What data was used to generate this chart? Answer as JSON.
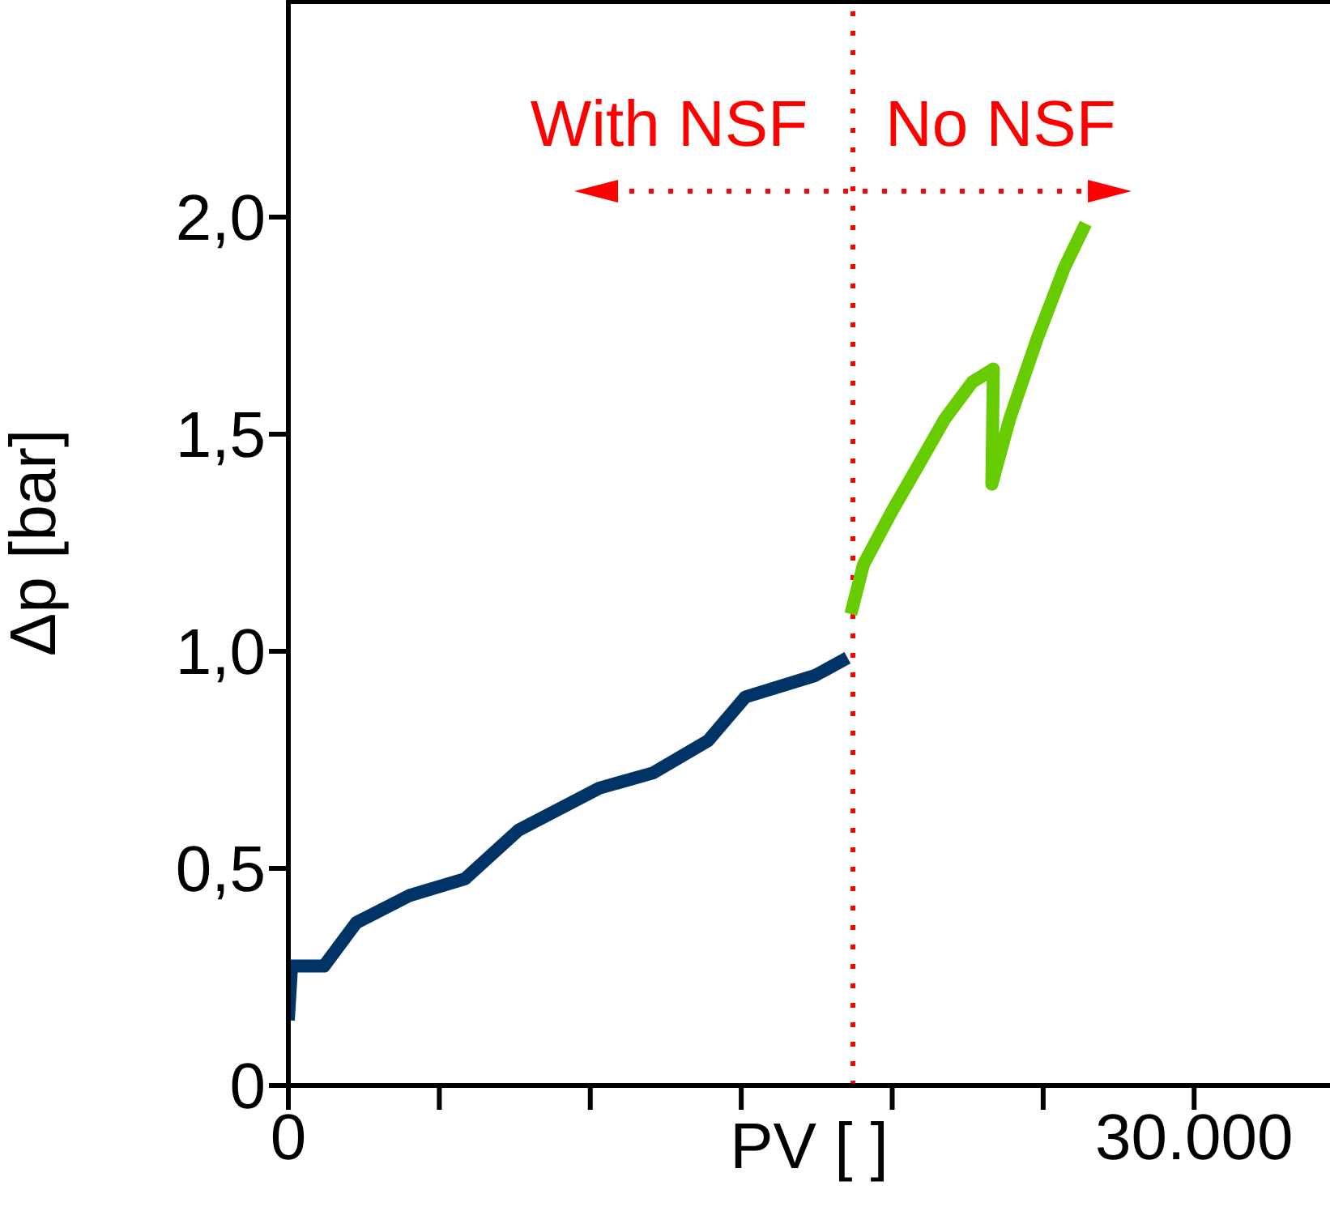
{
  "chart_data": {
    "type": "line",
    "xlabel": "PV [ ]",
    "ylabel": "Δp [bar]",
    "series": [
      {
        "color": "#003366",
        "x": [
          0,
          107,
          1180,
          2250,
          4030,
          5850,
          7620,
          10300,
          12080,
          13900,
          15140,
          17440,
          18520
        ],
        "values": [
          0.15,
          0.275,
          0.275,
          0.375,
          0.438,
          0.476,
          0.588,
          0.685,
          0.72,
          0.794,
          0.895,
          0.944,
          0.985
        ]
      },
      {
        "color": "#66cc00",
        "x": [
          18630,
          19050,
          19970,
          20880,
          21740,
          22650,
          23350,
          23300,
          23890,
          24800,
          25710,
          26410
        ],
        "values": [
          1.086,
          1.2,
          1.32,
          1.43,
          1.535,
          1.62,
          1.65,
          1.385,
          1.535,
          1.72,
          1.885,
          1.985
        ]
      }
    ],
    "xlim": [
      0,
      34500
    ],
    "ylim": [
      0,
      2.5
    ],
    "xticks": [
      0,
      {
        "value": 5000,
        "label": null
      },
      {
        "value": 10000,
        "label": null
      },
      {
        "value": 15000,
        "label": null
      },
      {
        "value": 20000,
        "label": null
      },
      {
        "value": 25000,
        "label": null
      },
      {
        "value": 30000,
        "label": "30.000"
      }
    ],
    "yticks": [
      0,
      {
        "value": 0.5,
        "label": "0,5"
      },
      {
        "value": 1,
        "label": "1,0"
      },
      {
        "value": 1.5,
        "label": "1,5"
      },
      {
        "value": 2,
        "label": "2,0"
      }
    ],
    "ref_lines": [
      {
        "axis": "x",
        "value": 18700,
        "color": "#ff0000",
        "line_style": "dotted"
      }
    ],
    "annotations": [
      "With NSF",
      "No NSF"
    ],
    "grid": false,
    "legend": false,
    "marker": "none",
    "line_style": "solid"
  }
}
